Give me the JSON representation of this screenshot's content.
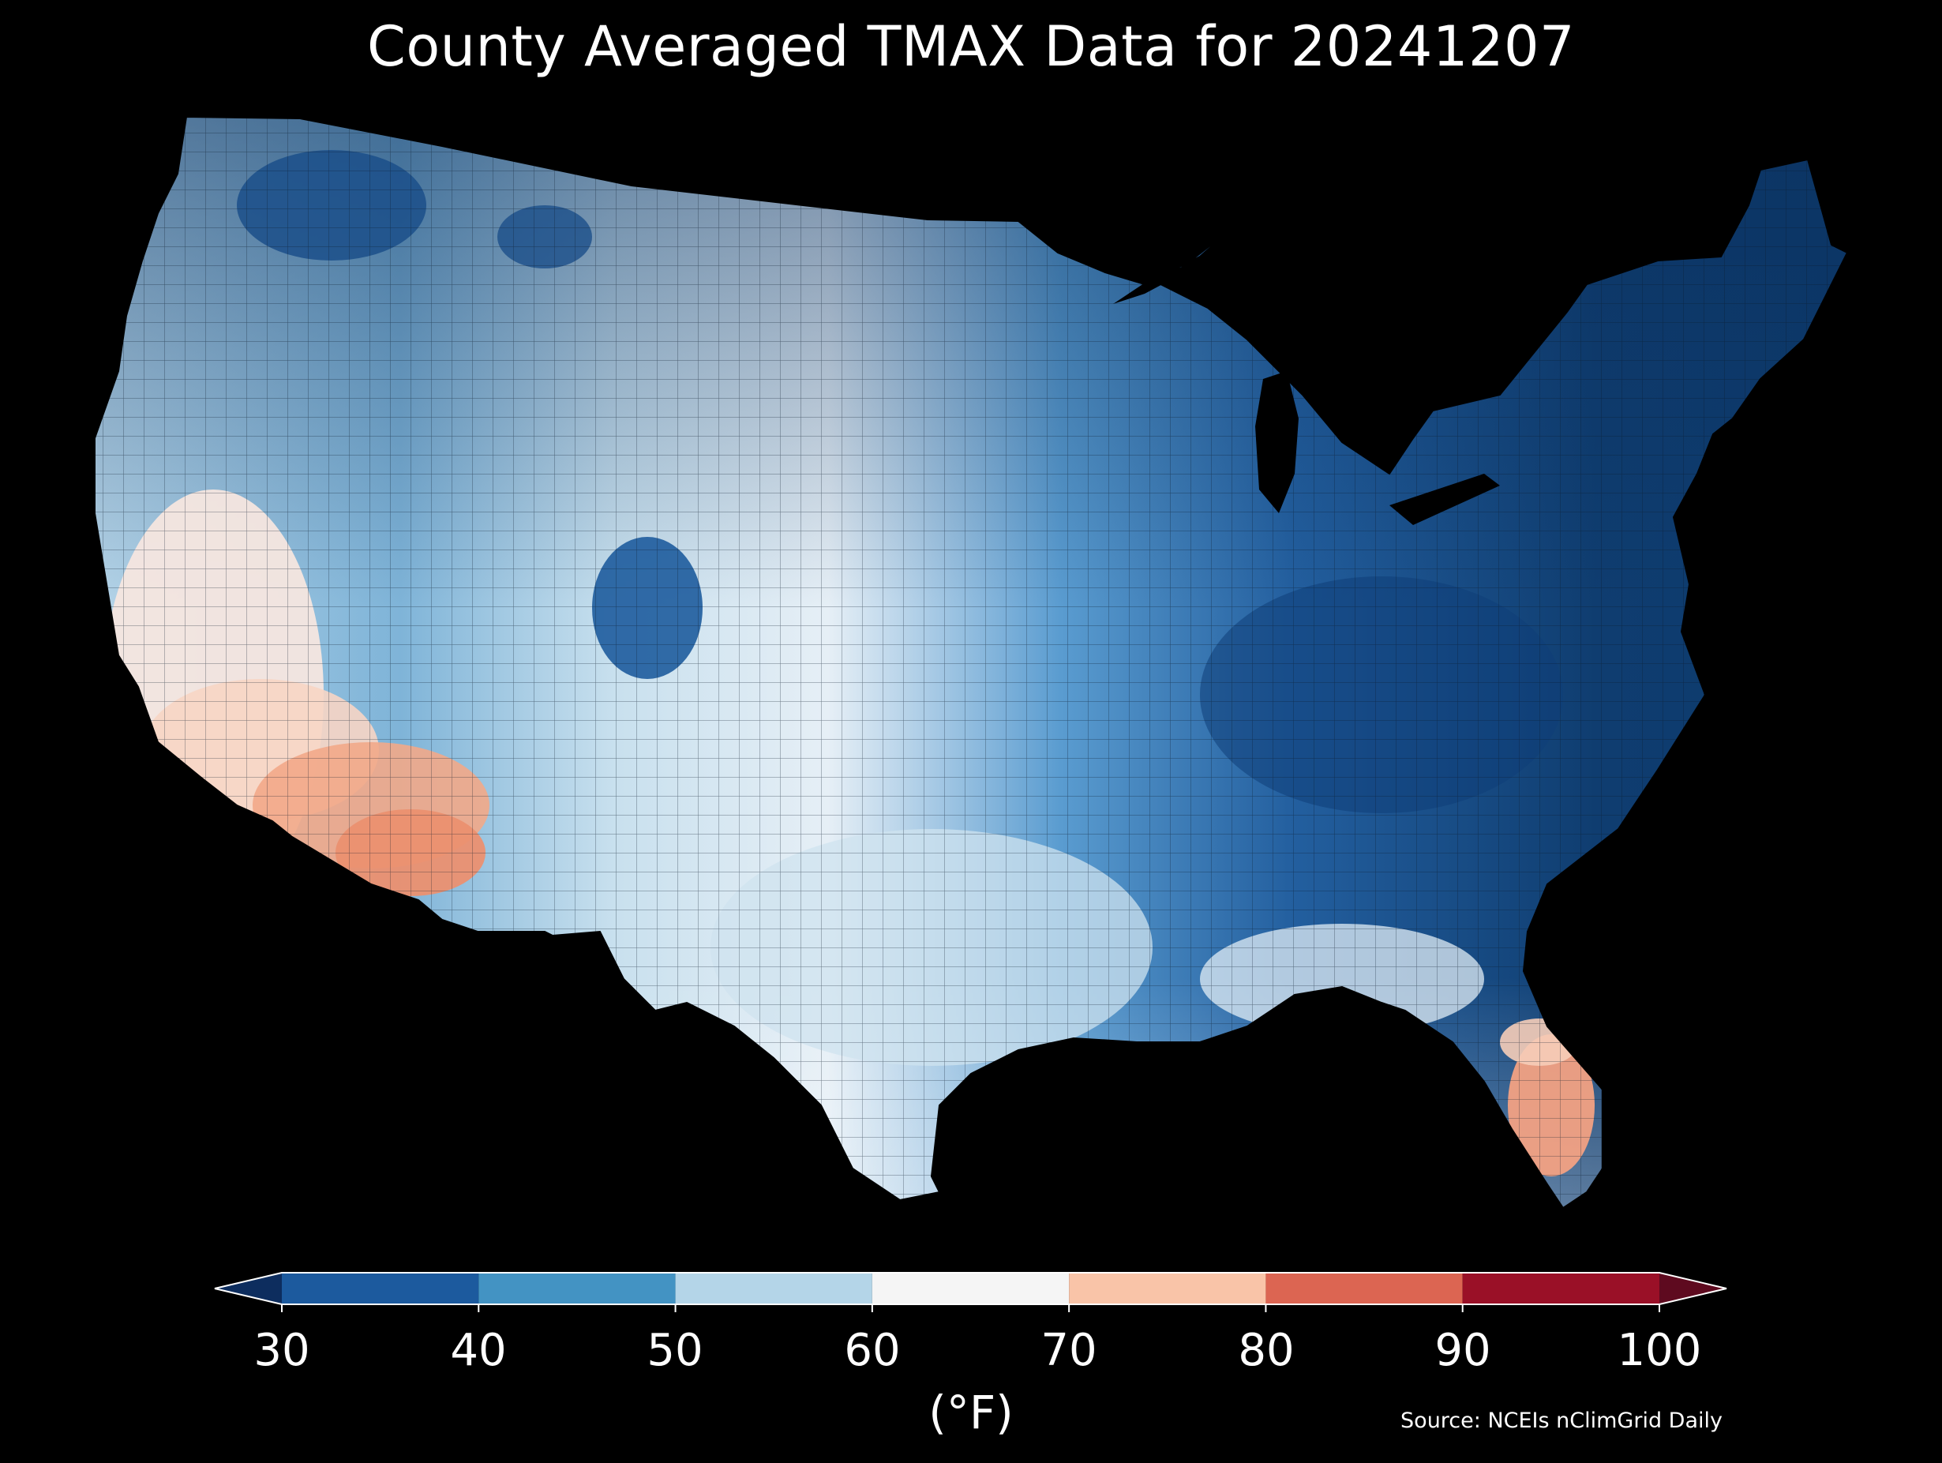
{
  "map": {
    "title": "County Averaged TMAX Data for 20241207",
    "region": "Contiguous United States (county level)",
    "variable": "TMAX",
    "date": "20241207"
  },
  "colorbar": {
    "ticks": [
      "30",
      "40",
      "50",
      "60",
      "70",
      "80",
      "90",
      "100"
    ],
    "unit_label": "(°F)",
    "extend": "both",
    "bins": [
      {
        "range": [
          30,
          40
        ],
        "color": "#1c5a9e"
      },
      {
        "range": [
          40,
          50
        ],
        "color": "#4393c3"
      },
      {
        "range": [
          50,
          60
        ],
        "color": "#b4d5e8"
      },
      {
        "range": [
          60,
          70
        ],
        "color": "#f5f5f5"
      },
      {
        "range": [
          70,
          80
        ],
        "color": "#f9c4a8"
      },
      {
        "range": [
          80,
          90
        ],
        "color": "#dc6552"
      },
      {
        "range": [
          90,
          100
        ],
        "color": "#9a1027"
      }
    ],
    "under_color": "#0d2d5e",
    "over_color": "#5e0a1f"
  },
  "source": "Source: NCEIs nClimGrid Daily"
}
